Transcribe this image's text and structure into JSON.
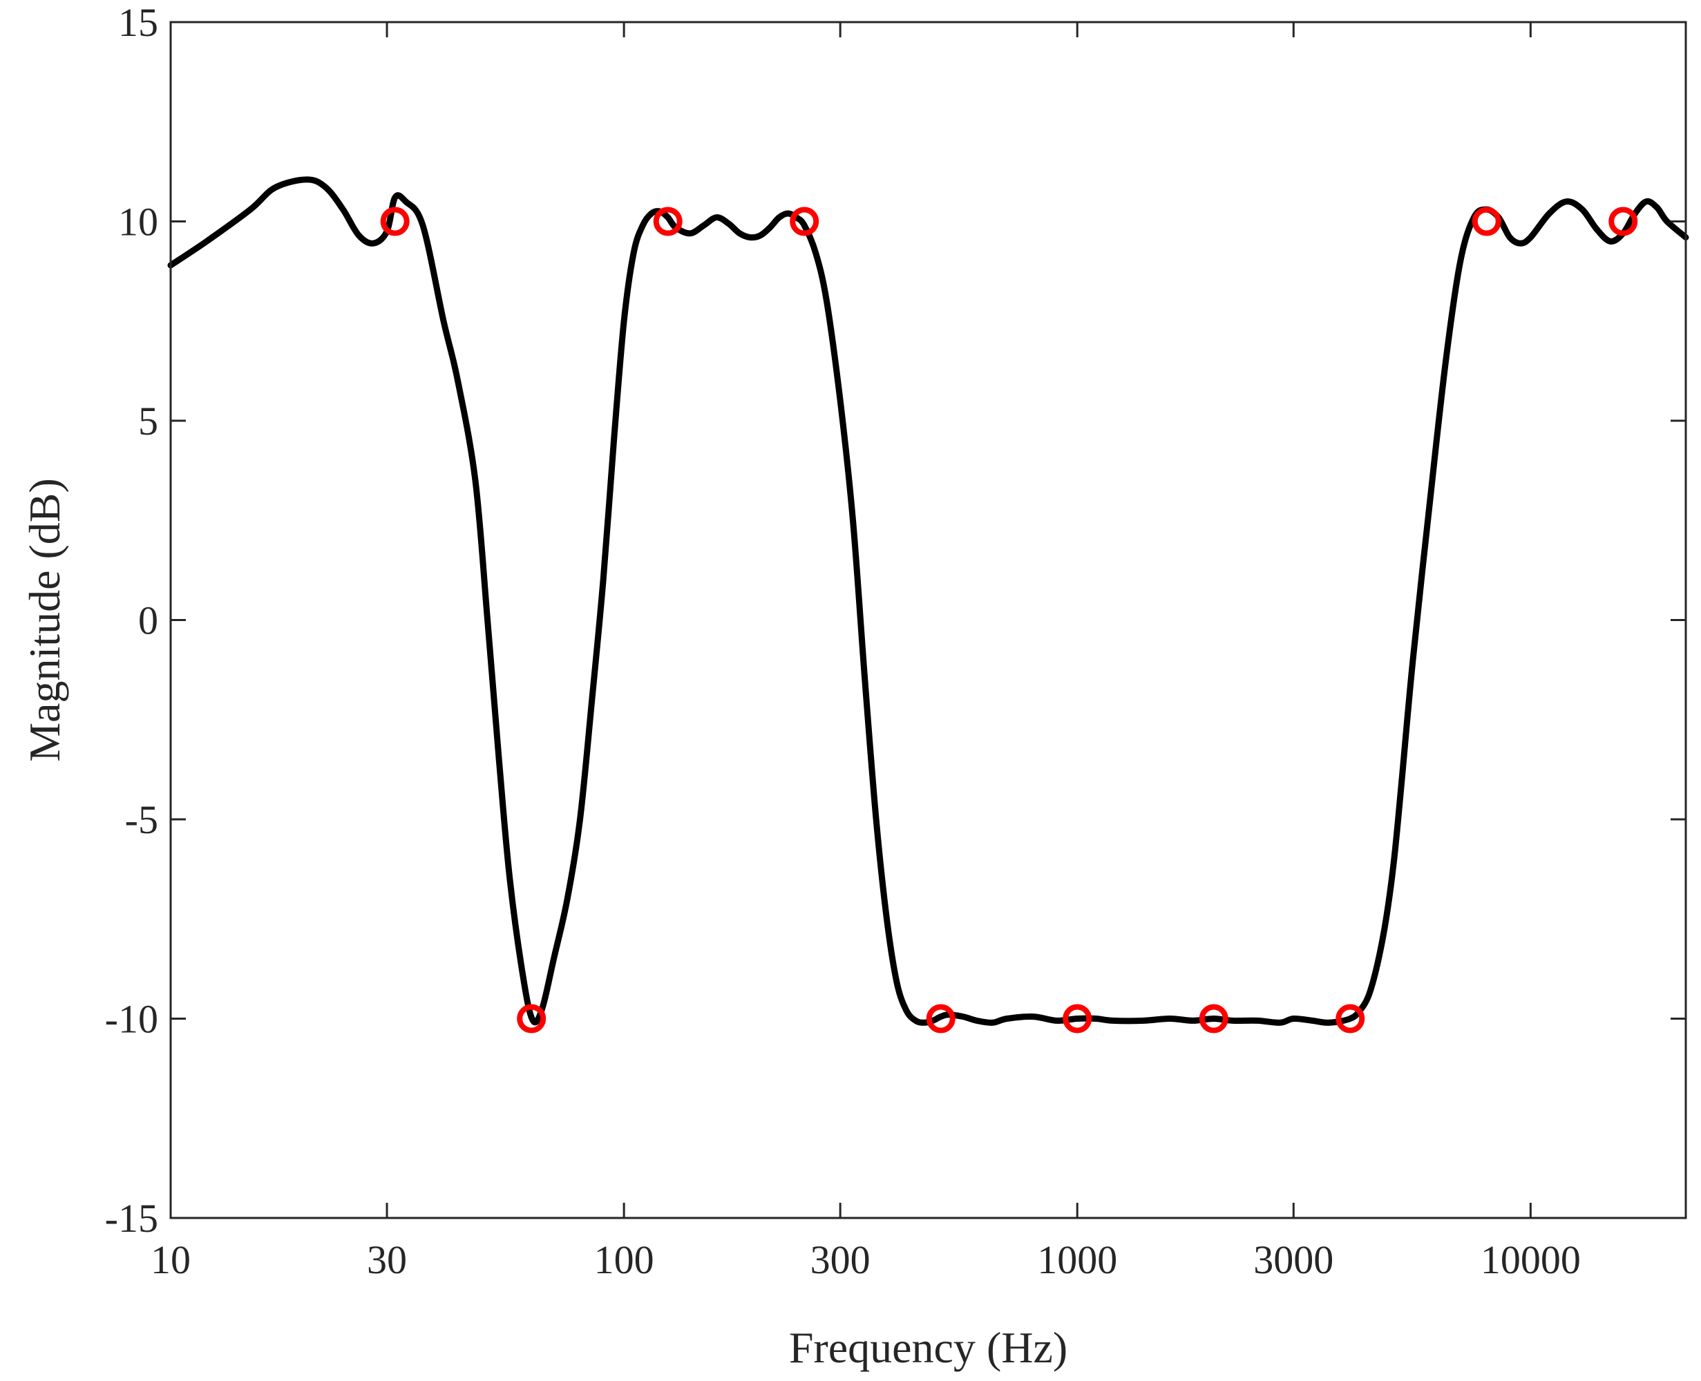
{
  "chart_data": {
    "type": "line",
    "title": "",
    "xlabel": "Frequency (Hz)",
    "ylabel": "Magnitude (dB)",
    "xscale": "log",
    "xlim": [
      10,
      22000
    ],
    "ylim": [
      -15,
      15
    ],
    "xticks": [
      10,
      30,
      100,
      300,
      1000,
      3000,
      10000
    ],
    "xtick_labels": [
      "10",
      "30",
      "100",
      "300",
      "1000",
      "3000",
      "10000"
    ],
    "yticks": [
      15,
      10,
      5,
      0,
      -5,
      -10,
      -15
    ],
    "ytick_labels": [
      "15",
      "10",
      "5",
      "0",
      "-5",
      "-10",
      "-15"
    ],
    "grid": false,
    "box": true,
    "colors": {
      "curve": "#000000",
      "markers": "#ff0000",
      "axes": "#262626"
    },
    "series": [
      {
        "style": "solid-line",
        "x": [
          10,
          12,
          15,
          17,
          20,
          22,
          24,
          26,
          28,
          30,
          31.25,
          33,
          36,
          40,
          43,
          47,
          50,
          53,
          56,
          60,
          63,
          66,
          70,
          75,
          80,
          85,
          90,
          95,
          100,
          105,
          110,
          115,
          120,
          125,
          130,
          140,
          150,
          160,
          170,
          180,
          190,
          200,
          210,
          220,
          230,
          240,
          250,
          265,
          280,
          300,
          320,
          340,
          360,
          380,
          400,
          420,
          440,
          460,
          480,
          500,
          520,
          560,
          600,
          650,
          700,
          800,
          900,
          1000,
          1100,
          1200,
          1400,
          1600,
          1800,
          2000,
          2200,
          2500,
          2800,
          3000,
          3300,
          3600,
          4000,
          4200,
          4400,
          4600,
          4800,
          5000,
          5200,
          5500,
          6000,
          6500,
          7000,
          7500,
          8000,
          8500,
          9000,
          9500,
          10000,
          11000,
          12000,
          13000,
          14000,
          15000,
          16000,
          17000,
          18000,
          19000,
          20000,
          22000
        ],
        "y": [
          8.9,
          9.5,
          10.3,
          10.85,
          11.05,
          10.85,
          10.3,
          9.65,
          9.45,
          9.75,
          10.6,
          10.5,
          9.9,
          7.5,
          6,
          3.5,
          0,
          -3.5,
          -6.5,
          -9,
          -10.05,
          -9.75,
          -8.5,
          -7,
          -5,
          -2,
          1,
          4.5,
          7.5,
          9.2,
          9.9,
          10.2,
          10.25,
          10.1,
          9.85,
          9.7,
          9.9,
          10.1,
          9.95,
          9.7,
          9.6,
          9.65,
          9.85,
          10.1,
          10.2,
          10.1,
          9.9,
          9.2,
          8,
          5.5,
          2.5,
          -1.5,
          -5,
          -7.5,
          -9.1,
          -9.8,
          -10.05,
          -10.1,
          -10.05,
          -9.95,
          -9.9,
          -9.95,
          -10.05,
          -10.1,
          -10,
          -9.95,
          -10.05,
          -10,
          -10,
          -10.05,
          -10.05,
          -10,
          -10.05,
          -10,
          -10.05,
          -10.05,
          -10.1,
          -10,
          -10.05,
          -10.1,
          -10,
          -9.8,
          -9.4,
          -8.6,
          -7.5,
          -6,
          -4,
          -1,
          3,
          6.5,
          9,
          10.1,
          10.3,
          10.1,
          9.6,
          9.45,
          9.6,
          10.2,
          10.5,
          10.3,
          9.8,
          9.5,
          9.7,
          10.2,
          10.5,
          10.35,
          10.0,
          9.6
        ]
      },
      {
        "style": "circle-markers",
        "x": [
          31.25,
          62.5,
          125,
          250,
          500,
          1000,
          2000,
          4000,
          8000,
          16000
        ],
        "y": [
          10,
          -10,
          10,
          10,
          -10,
          -10,
          -10,
          -10,
          10,
          10
        ]
      }
    ]
  }
}
